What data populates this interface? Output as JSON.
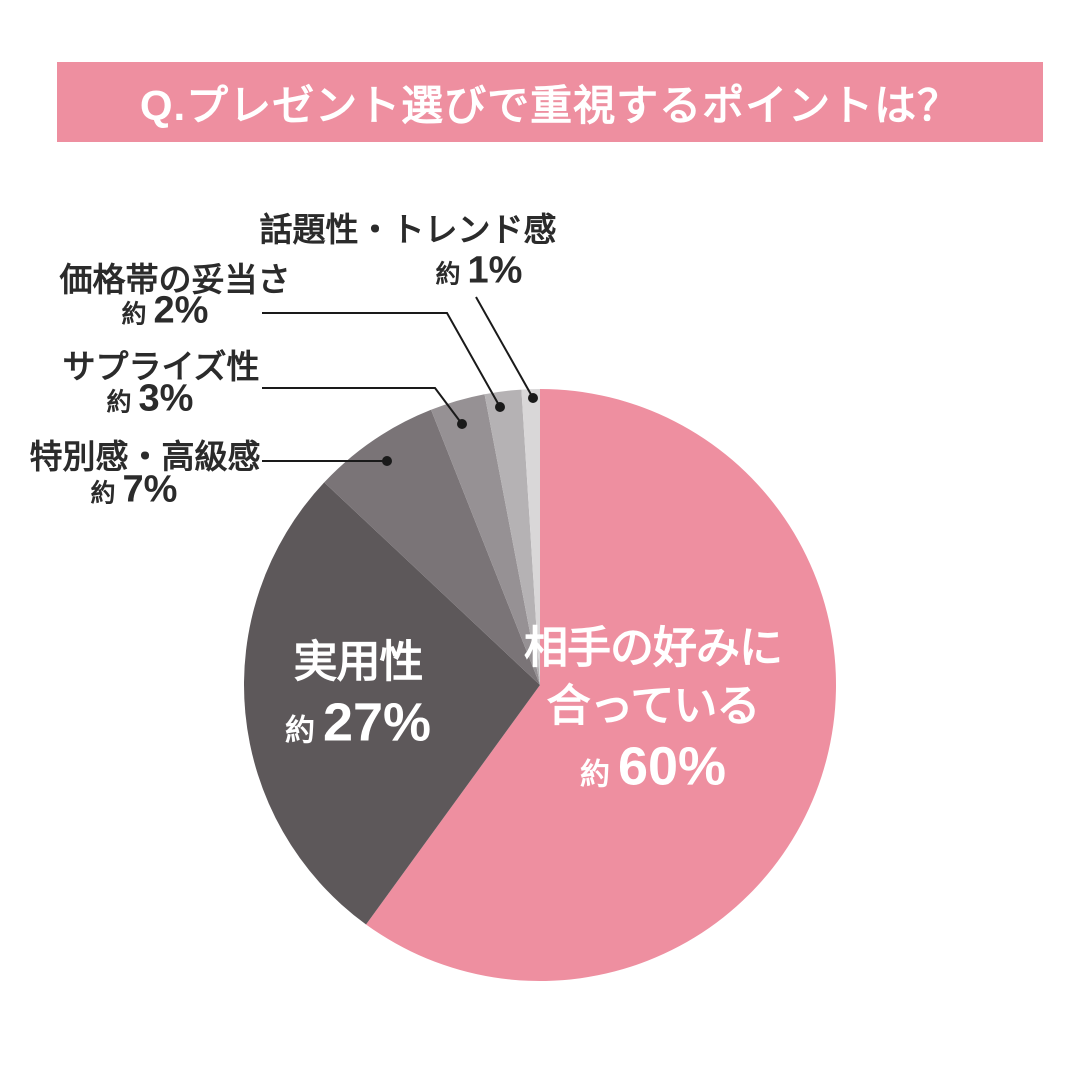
{
  "header": {
    "title": "Q.プレゼント選びで重視するポイントは？"
  },
  "palette": {
    "background": "#FFFFFF",
    "banner_pink": "#EE8FA0",
    "outside_label_text": "#2B2B2B",
    "inside_label_text": "#FFFFFF",
    "leader_line": "#1A1A1A"
  },
  "chart_data": {
    "type": "pie",
    "title": "Q.プレゼント選びで重視するポイントは？",
    "start_angle_deg": 0,
    "direction": "clockwise",
    "total_percent": 100,
    "segments": [
      {
        "label": "相手の好みに合っている",
        "label_line1": "相手の好みに",
        "label_line2": "合っている",
        "approx": "約",
        "percent": 60,
        "percent_label": "60%",
        "color": "#EE8FA0",
        "label_position": "inside"
      },
      {
        "label": "実用性",
        "approx": "約",
        "percent": 27,
        "percent_label": "27%",
        "color": "#5D585A",
        "label_position": "inside"
      },
      {
        "label": "特別感・高級感",
        "approx": "約",
        "percent": 7,
        "percent_label": "7%",
        "color": "#7A7477",
        "label_position": "outside-left"
      },
      {
        "label": "サプライズ性",
        "approx": "約",
        "percent": 3,
        "percent_label": "3%",
        "color": "#969194",
        "label_position": "outside-left"
      },
      {
        "label": "価格帯の妥当さ",
        "approx": "約",
        "percent": 2,
        "percent_label": "2%",
        "color": "#B5B2B4",
        "label_position": "outside-left"
      },
      {
        "label": "話題性・トレンド感",
        "approx": "約",
        "percent": 1,
        "percent_label": "1%",
        "color": "#D9D7D8",
        "label_position": "outside-top"
      }
    ]
  }
}
